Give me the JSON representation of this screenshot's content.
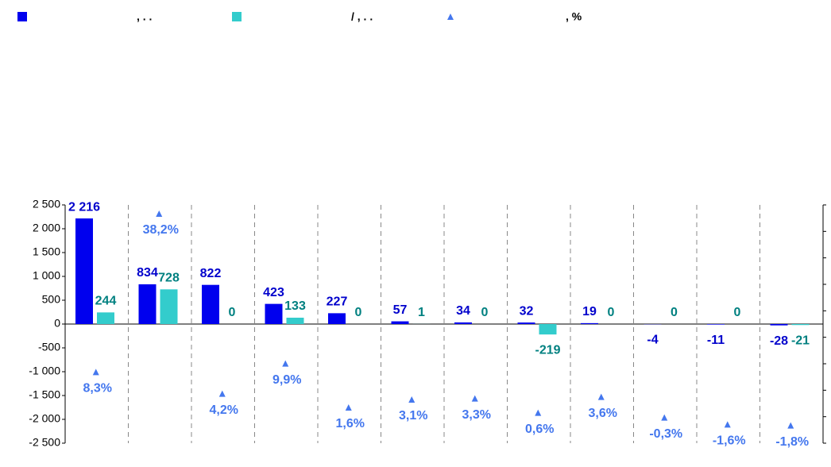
{
  "chart_data": {
    "type": "bar",
    "categories": [
      null,
      null,
      null,
      null,
      null,
      null,
      null,
      null,
      null,
      null,
      null,
      null
    ],
    "series": [
      {
        "name": ", . .",
        "color": "#0000ee",
        "values": [
          2216,
          834,
          822,
          423,
          227,
          57,
          34,
          32,
          19,
          -4,
          -11,
          -28
        ],
        "value_labels": [
          "2 216",
          "834",
          "822",
          "423",
          "227",
          "57",
          "34",
          "32",
          "19",
          "-4",
          "-11",
          "-28"
        ],
        "label_color": "#0000cc"
      },
      {
        "name": "/ , . .",
        "color": "#33cccc",
        "values": [
          244,
          728,
          0,
          133,
          0,
          1,
          0,
          -219,
          0,
          0,
          0,
          -21
        ],
        "label_color": "#008080"
      },
      {
        "name": ", %",
        "color": "#4477ee",
        "axis": "y2",
        "marker": "triangle",
        "values": [
          8.3,
          38.2,
          4.2,
          9.9,
          1.6,
          3.1,
          3.3,
          0.6,
          3.6,
          -0.3,
          -1.6,
          -1.8
        ],
        "value_labels": [
          "8,3%",
          "38,2%",
          "4,2%",
          "9,9%",
          "1,6%",
          "3,1%",
          "3,3%",
          "0,6%",
          "3,6%",
          "-0,3%",
          "-1,6%",
          "-1,8%"
        ],
        "label_color": "#4477ee"
      }
    ],
    "ylim": [
      -2500,
      2500
    ],
    "yticks": [
      {
        "value": -2500,
        "label": "-2 500"
      },
      {
        "value": -2000,
        "label": "-2 000"
      },
      {
        "value": -1500,
        "label": "-1 500"
      },
      {
        "value": -1000,
        "label": "-1 000"
      },
      -500,
      0,
      500,
      {
        "value": 1000,
        "label": "1 000"
      },
      {
        "value": 1500,
        "label": "1 500"
      },
      {
        "value": 2000,
        "label": "2 000"
      },
      {
        "value": 2500,
        "label": "2 500"
      }
    ],
    "y2lim": [
      -5,
      40
    ],
    "y2ticks": [
      -5,
      0,
      5,
      10,
      15,
      20,
      25,
      30,
      35,
      40
    ],
    "legend": "top"
  }
}
